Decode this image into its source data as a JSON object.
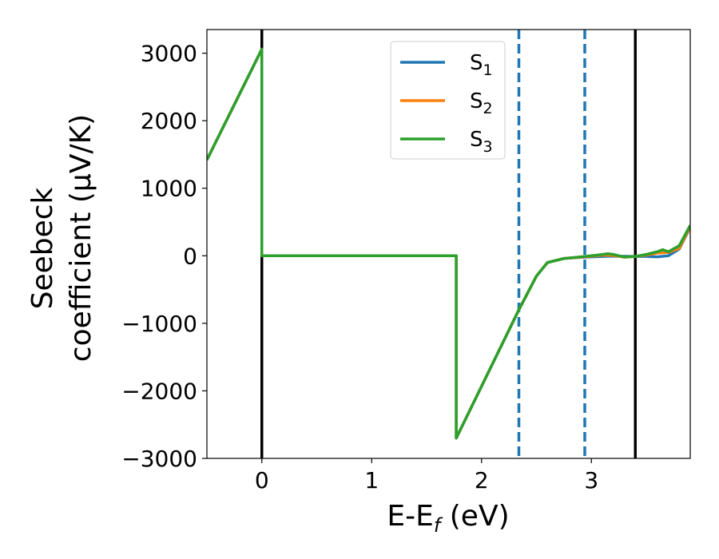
{
  "chart_data": {
    "type": "line",
    "xlabel": "E-E_f (eV)",
    "xlabel_parts": {
      "base": "E-E",
      "sub": "f",
      "rest": " (eV)"
    },
    "ylabel_lines": [
      "Seebeck",
      "coefficient  (μV/K)"
    ],
    "xlim": [
      -0.5,
      3.9
    ],
    "ylim": [
      -3000,
      3350
    ],
    "xticks": [
      0,
      1,
      2,
      3
    ],
    "yticks": [
      -3000,
      -2000,
      -1000,
      0,
      1000,
      2000,
      3000
    ],
    "xtick_labels": [
      "0",
      "1",
      "2",
      "3"
    ],
    "ytick_labels": [
      "−3000",
      "−2000",
      "−1000",
      "0",
      "1000",
      "2000",
      "3000"
    ],
    "legend_position": "top-center",
    "vertical_lines": [
      {
        "x": 0.0,
        "style": "solid",
        "color": "#000000"
      },
      {
        "x": 3.4,
        "style": "solid",
        "color": "#000000"
      },
      {
        "x": 2.34,
        "style": "dashed",
        "color": "#1f77b4"
      },
      {
        "x": 2.94,
        "style": "dashed",
        "color": "#1f77b4"
      }
    ],
    "series": [
      {
        "name": "S1",
        "label_base": "S",
        "label_sub": "1",
        "color": "#1f77b4",
        "points": [
          [
            -0.5,
            1420
          ],
          [
            0.0,
            3060
          ],
          [
            0.0,
            0
          ],
          [
            1.77,
            0
          ],
          [
            1.77,
            -2700
          ],
          [
            2.34,
            -800
          ],
          [
            2.5,
            -300
          ],
          [
            2.6,
            -100
          ],
          [
            2.75,
            -40
          ],
          [
            2.94,
            -20
          ],
          [
            3.1,
            -10
          ],
          [
            3.2,
            -5
          ],
          [
            3.4,
            -10
          ],
          [
            3.5,
            -10
          ],
          [
            3.6,
            -15
          ],
          [
            3.7,
            0
          ],
          [
            3.8,
            100
          ],
          [
            3.9,
            420
          ]
        ]
      },
      {
        "name": "S2",
        "label_base": "S",
        "label_sub": "2",
        "color": "#ff7f0e",
        "points": [
          [
            -0.5,
            1420
          ],
          [
            0.0,
            3060
          ],
          [
            0.0,
            0
          ],
          [
            1.77,
            0
          ],
          [
            1.77,
            -2700
          ],
          [
            2.34,
            -800
          ],
          [
            2.5,
            -300
          ],
          [
            2.6,
            -100
          ],
          [
            2.75,
            -40
          ],
          [
            2.94,
            -15
          ],
          [
            3.1,
            10
          ],
          [
            3.2,
            5
          ],
          [
            3.3,
            -20
          ],
          [
            3.4,
            -10
          ],
          [
            3.5,
            10
          ],
          [
            3.6,
            40
          ],
          [
            3.7,
            50
          ],
          [
            3.8,
            110
          ],
          [
            3.9,
            430
          ]
        ]
      },
      {
        "name": "S3",
        "label_base": "S",
        "label_sub": "3",
        "color": "#2ca02c",
        "points": [
          [
            -0.5,
            1420
          ],
          [
            0.0,
            3060
          ],
          [
            0.0,
            0
          ],
          [
            1.77,
            0
          ],
          [
            1.77,
            -2700
          ],
          [
            2.34,
            -800
          ],
          [
            2.5,
            -300
          ],
          [
            2.6,
            -100
          ],
          [
            2.75,
            -40
          ],
          [
            2.94,
            -10
          ],
          [
            3.05,
            10
          ],
          [
            3.15,
            30
          ],
          [
            3.2,
            20
          ],
          [
            3.3,
            -20
          ],
          [
            3.4,
            -10
          ],
          [
            3.5,
            20
          ],
          [
            3.6,
            60
          ],
          [
            3.65,
            90
          ],
          [
            3.7,
            60
          ],
          [
            3.8,
            150
          ],
          [
            3.9,
            450
          ]
        ]
      }
    ]
  }
}
